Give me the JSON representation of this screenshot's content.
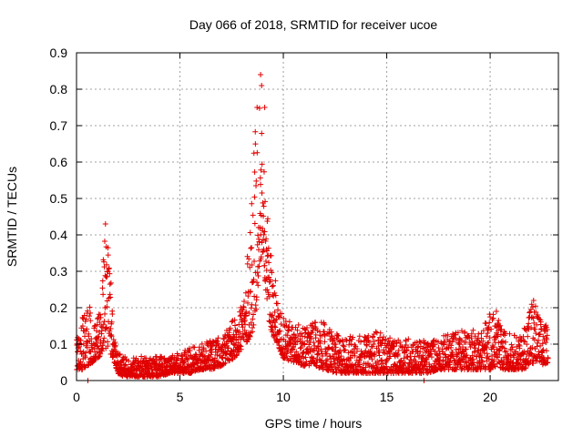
{
  "chart_data": {
    "type": "scatter",
    "title": "Day 066 of 2018, SRMTID for receiver ucoe",
    "xlabel": "GPS time / hours",
    "ylabel": "SRMTID / TECUs",
    "xlim": [
      0,
      23.3
    ],
    "ylim": [
      0,
      0.9
    ],
    "xticks": [
      0,
      5,
      10,
      15,
      20
    ],
    "xtick_labels": [
      "0",
      "5",
      "10",
      "15",
      "20"
    ],
    "yticks": [
      0,
      0.1,
      0.2,
      0.3,
      0.4,
      0.5,
      0.6,
      0.7,
      0.8,
      0.9
    ],
    "ytick_labels": [
      "0",
      "0.1",
      "0.2",
      "0.3",
      "0.4",
      "0.5",
      "0.6",
      "0.7",
      "0.8",
      "0.9"
    ],
    "grid": true,
    "marker": "+",
    "color": "#e00000",
    "series": [
      {
        "name": "SRMTID",
        "envelope": {
          "x": [
            0.0,
            0.3,
            0.5,
            0.8,
            1.0,
            1.2,
            1.35,
            1.5,
            1.65,
            1.8,
            2.0,
            2.3,
            2.6,
            3.0,
            3.5,
            4.0,
            4.5,
            5.0,
            5.5,
            6.0,
            6.5,
            7.0,
            7.3,
            7.6,
            7.9,
            8.2,
            8.5,
            8.7,
            8.85,
            9.0,
            9.15,
            9.3,
            9.5,
            9.7,
            10.0,
            10.5,
            11.0,
            11.5,
            12.0,
            12.5,
            13.0,
            13.5,
            14.0,
            14.5,
            15.0,
            15.5,
            16.0,
            16.5,
            17.0,
            17.5,
            18.0,
            18.5,
            19.0,
            19.5,
            20.0,
            20.3,
            20.6,
            21.0,
            21.5,
            22.0,
            22.2,
            22.5,
            22.8
          ],
          "low": [
            0.03,
            0.03,
            0.04,
            0.05,
            0.06,
            0.07,
            0.08,
            0.09,
            0.07,
            0.05,
            0.02,
            0.01,
            0.01,
            0.01,
            0.01,
            0.01,
            0.02,
            0.02,
            0.02,
            0.03,
            0.03,
            0.04,
            0.05,
            0.06,
            0.08,
            0.1,
            0.13,
            0.2,
            0.3,
            0.35,
            0.25,
            0.16,
            0.12,
            0.1,
            0.06,
            0.05,
            0.04,
            0.04,
            0.03,
            0.02,
            0.02,
            0.02,
            0.02,
            0.02,
            0.02,
            0.02,
            0.02,
            0.02,
            0.02,
            0.03,
            0.03,
            0.03,
            0.03,
            0.03,
            0.03,
            0.04,
            0.03,
            0.03,
            0.03,
            0.04,
            0.05,
            0.04,
            0.05
          ],
          "high": [
            0.12,
            0.18,
            0.26,
            0.15,
            0.17,
            0.2,
            0.43,
            0.41,
            0.3,
            0.12,
            0.08,
            0.07,
            0.06,
            0.07,
            0.06,
            0.07,
            0.07,
            0.08,
            0.09,
            0.1,
            0.11,
            0.12,
            0.14,
            0.17,
            0.21,
            0.29,
            0.55,
            0.75,
            0.84,
            0.7,
            0.53,
            0.4,
            0.32,
            0.25,
            0.18,
            0.16,
            0.15,
            0.16,
            0.16,
            0.13,
            0.12,
            0.13,
            0.12,
            0.14,
            0.12,
            0.11,
            0.12,
            0.11,
            0.11,
            0.12,
            0.13,
            0.14,
            0.14,
            0.14,
            0.19,
            0.18,
            0.14,
            0.13,
            0.12,
            0.23,
            0.21,
            0.16,
            0.15
          ]
        },
        "outliers": [
          {
            "x": 0.55,
            "y": 0.0
          },
          {
            "x": 16.8,
            "y": 0.0
          },
          {
            "x": 1.4,
            "y": 0.43
          },
          {
            "x": 8.9,
            "y": 0.84
          },
          {
            "x": 8.95,
            "y": 0.81
          },
          {
            "x": 9.1,
            "y": 0.75
          },
          {
            "x": 22.1,
            "y": 0.22
          },
          {
            "x": 20.3,
            "y": 0.19
          }
        ]
      }
    ]
  }
}
